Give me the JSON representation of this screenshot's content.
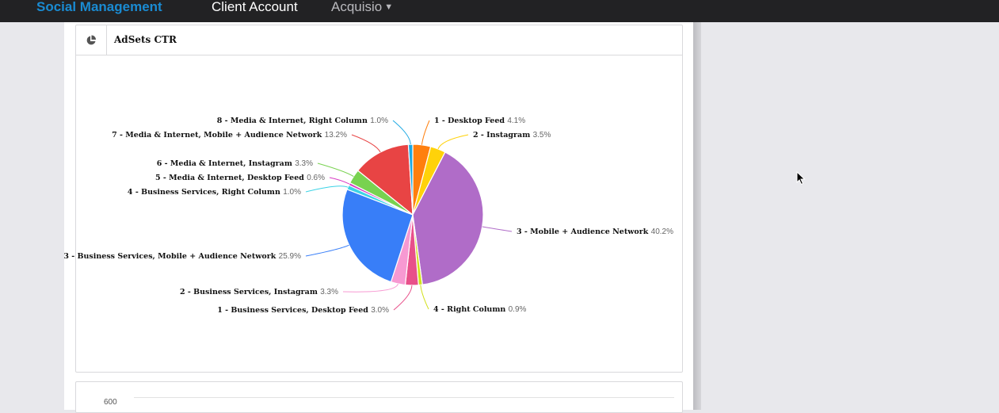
{
  "topbar": {
    "brand": "Social Management",
    "client_label": "Client Account",
    "account_name": "Acquisio",
    "account_caret": "▼"
  },
  "card": {
    "icon": "pie-chart-icon",
    "title": "AdSets CTR"
  },
  "second_card": {
    "y_tick_top": "600"
  },
  "colors": {
    "brand": "#1a8bd2",
    "topbar_bg": "#222224",
    "page_bg": "#e8e8ec"
  },
  "chart_data": {
    "type": "pie",
    "title": "AdSets CTR",
    "start_angle": "12 o'clock, clockwise",
    "slices": [
      {
        "label": "1 - Desktop Feed",
        "value": 4.1,
        "display": "4.1%",
        "color": "#ff7f0e"
      },
      {
        "label": "2 - Instagram",
        "value": 3.5,
        "display": "3.5%",
        "color": "#ffd20a"
      },
      {
        "label": "3 - Mobile + Audience Network",
        "value": 40.2,
        "display": "40.2%",
        "color": "#b06cc8"
      },
      {
        "label": "4 - Right Column",
        "value": 0.9,
        "display": "0.9%",
        "color": "#d2e01c"
      },
      {
        "label": "1 - Business Services, Desktop Feed",
        "value": 3.0,
        "display": "3.0%",
        "color": "#e8508a"
      },
      {
        "label": "2 - Business Services, Instagram",
        "value": 3.3,
        "display": "3.3%",
        "color": "#f799d2"
      },
      {
        "label": "3 - Business Services, Mobile + Audience Network",
        "value": 25.9,
        "display": "25.9%",
        "color": "#387ef8"
      },
      {
        "label": "4 - Business Services, Right Column",
        "value": 1.0,
        "display": "1.0%",
        "color": "#3cd3e6"
      },
      {
        "label": "5 - Media & Internet, Desktop Feed",
        "value": 0.6,
        "display": "0.6%",
        "color": "#d83cc4"
      },
      {
        "label": "6 - Media & Internet, Instagram",
        "value": 3.3,
        "display": "3.3%",
        "color": "#78d250"
      },
      {
        "label": "7 - Media & Internet, Mobile + Audience Network",
        "value": 13.2,
        "display": "13.2%",
        "color": "#e84444"
      },
      {
        "label": "8 - Media & Internet, Right Column",
        "value": 1.0,
        "display": "1.0%",
        "color": "#1ca8e2"
      }
    ]
  }
}
